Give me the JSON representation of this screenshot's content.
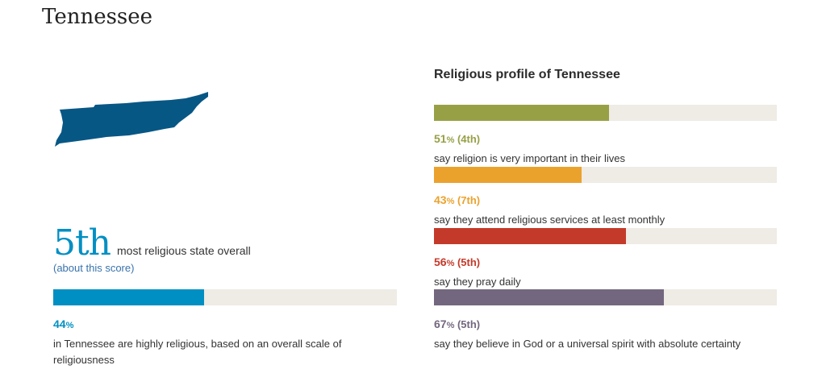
{
  "state": {
    "name": "Tennessee",
    "map_color": "#075785"
  },
  "overall": {
    "rank_label": "5th",
    "rank_text": "most religious state overall",
    "about_link": "(about this score)",
    "value": 44,
    "pct_number": "44",
    "pct_sign": "%",
    "color": "#008fc3",
    "description": "in Tennessee are highly religious, based on an overall scale of religiousness"
  },
  "profile": {
    "title": "Religious profile of Tennessee",
    "items": [
      {
        "value": 51,
        "pct_number": "51",
        "pct_sign": "%",
        "rank": " (4th)",
        "color": "#98a046",
        "description": "say religion is very important in their lives"
      },
      {
        "value": 43,
        "pct_number": "43",
        "pct_sign": "%",
        "rank": " (7th)",
        "color": "#eba22d",
        "description": "say they attend religious services at least monthly"
      },
      {
        "value": 56,
        "pct_number": "56",
        "pct_sign": "%",
        "rank": " (5th)",
        "color": "#c43a2a",
        "description": "say they pray daily"
      },
      {
        "value": 67,
        "pct_number": "67",
        "pct_sign": "%",
        "rank": " (5th)",
        "color": "#73677f",
        "description": "say they believe in God or a universal spirit with absolute certainty"
      }
    ]
  },
  "chart_data": {
    "type": "bar",
    "title": "Religious profile of Tennessee",
    "xlim": [
      0,
      100
    ],
    "categories": [
      "in Tennessee are highly religious, based on an overall scale of religiousness",
      "say religion is very important in their lives",
      "say they attend religious services at least monthly",
      "say they pray daily",
      "say they believe in God or a universal spirit with absolute certainty"
    ],
    "values": [
      44,
      51,
      43,
      56,
      67
    ],
    "ranks": [
      "5th",
      "4th",
      "7th",
      "5th",
      "5th"
    ]
  }
}
